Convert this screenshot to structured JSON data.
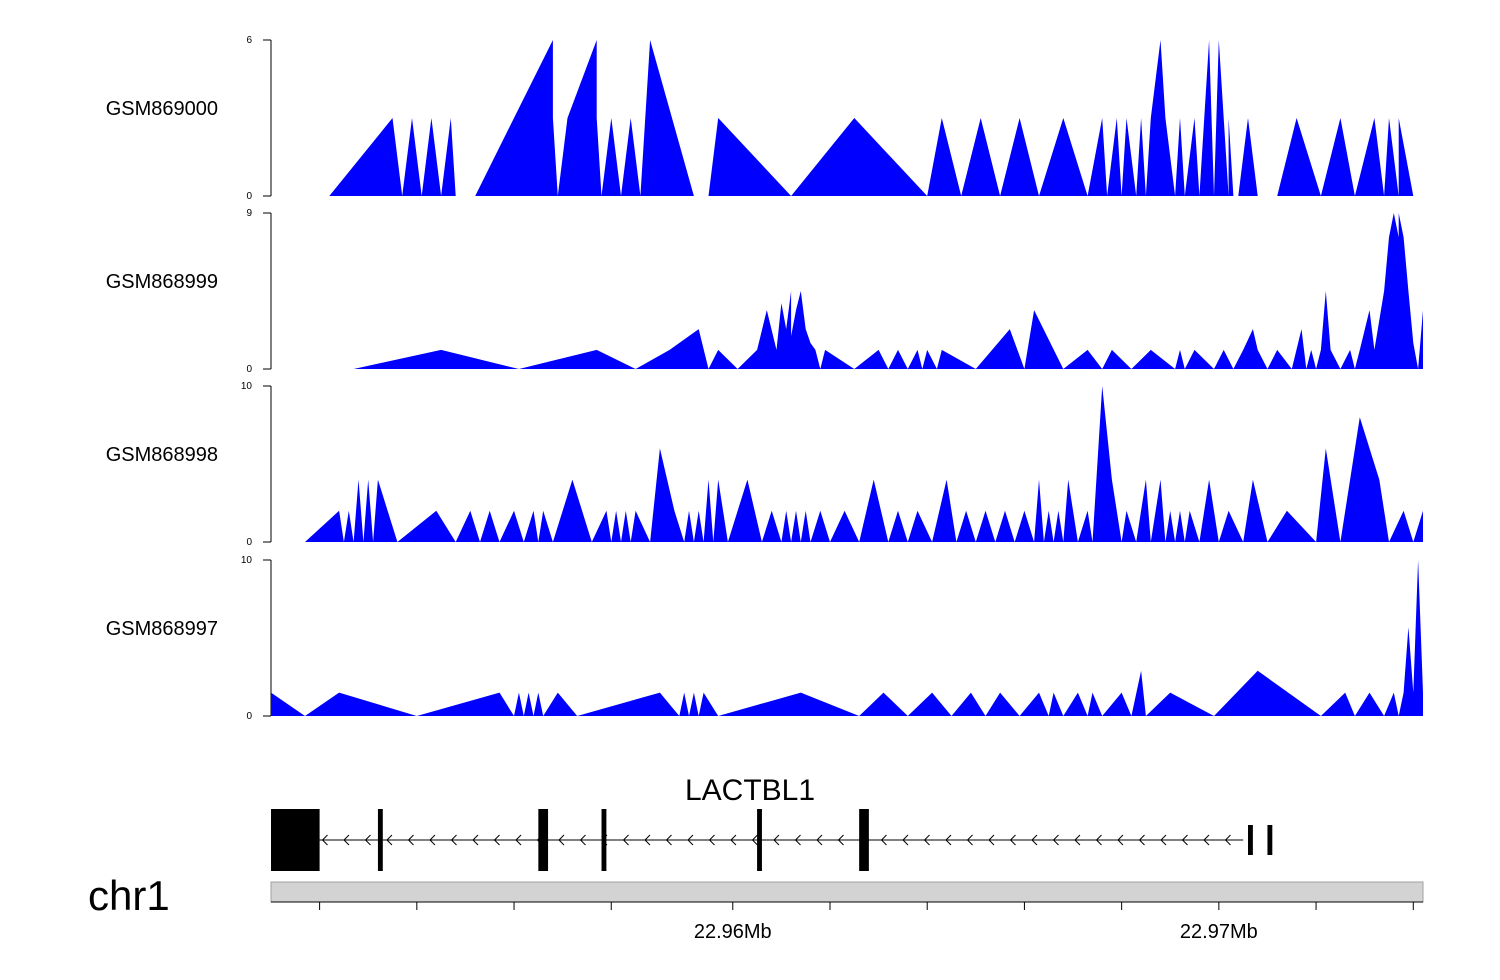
{
  "chart_data": {
    "type": "area",
    "color": "#0000ff",
    "x_range": [
      22.9505,
      22.9742
    ],
    "tracks": [
      {
        "label": "GSM869000",
        "ymin": 0,
        "ymax": 6,
        "y_ticks": [
          "6",
          "0"
        ],
        "x": [
          22.9517,
          22.953,
          22.9532,
          22.9534,
          22.9536,
          22.9538,
          22.954,
          22.9542,
          22.9543,
          22.9547,
          22.9555,
          22.9563,
          22.9563,
          22.9564,
          22.9566,
          22.9572,
          22.9572,
          22.9573,
          22.9575,
          22.9577,
          22.9579,
          22.9581,
          22.9583,
          22.9592,
          22.9595,
          22.9597,
          22.9612,
          22.9625,
          22.964,
          22.9643,
          22.9647,
          22.9651,
          22.9655,
          22.9659,
          22.9663,
          22.9668,
          22.9673,
          22.9676,
          22.9677,
          22.9679,
          22.968,
          22.9681,
          22.9683,
          22.9684,
          22.9685,
          22.9686,
          22.9688,
          22.9689,
          22.9691,
          22.9692,
          22.9693,
          22.9695,
          22.9696,
          22.9698,
          22.9699,
          22.97,
          22.9702,
          22.9702,
          22.9703,
          22.9704,
          22.9706,
          22.9708,
          22.9712,
          22.9716,
          22.9721,
          22.9725,
          22.9728,
          22.9732,
          22.9734,
          22.9735,
          22.9737,
          22.9737,
          22.974
        ],
        "y": [
          0,
          3,
          0,
          3,
          0,
          3,
          0,
          3,
          0,
          0,
          3,
          6,
          3,
          0,
          3,
          6,
          3,
          0,
          3,
          0,
          3,
          0,
          6,
          0,
          0,
          3,
          0,
          3,
          0,
          3,
          0,
          3,
          0,
          3,
          0,
          3,
          0,
          3,
          0,
          3,
          0,
          3,
          0,
          3,
          0,
          3,
          6,
          3,
          0,
          3,
          0,
          3,
          0,
          6,
          0,
          6,
          0,
          3,
          0,
          0,
          3,
          0,
          0,
          3,
          0,
          3,
          0,
          3,
          0,
          3,
          0,
          3,
          0
        ]
      },
      {
        "label": "GSM868999",
        "ymin": 0,
        "ymax": 9,
        "y_ticks": [
          "9",
          "0"
        ],
        "x": [
          22.9522,
          22.954,
          22.9556,
          22.9572,
          22.958,
          22.9587,
          22.9593,
          22.9595,
          22.9597,
          22.9601,
          22.9605,
          22.9607,
          22.9609,
          22.961,
          22.9611,
          22.9612,
          22.9612,
          22.9613,
          22.9614,
          22.9615,
          22.9616,
          22.9617,
          22.9618,
          22.9619,
          22.9625,
          22.963,
          22.9632,
          22.9634,
          22.9636,
          22.9638,
          22.9639,
          22.964,
          22.9642,
          22.9643,
          22.965,
          22.9657,
          22.966,
          22.9662,
          22.9668,
          22.9673,
          22.9676,
          22.9678,
          22.9682,
          22.9686,
          22.9691,
          22.9692,
          22.9693,
          22.9695,
          22.9699,
          22.9701,
          22.9703,
          22.9705,
          22.9707,
          22.9708,
          22.971,
          22.9712,
          22.9715,
          22.9717,
          22.9718,
          22.9719,
          22.972,
          22.9721,
          22.9722,
          22.9723,
          22.9725,
          22.9727,
          22.9728,
          22.9729,
          22.9731,
          22.9732,
          22.9734,
          22.9735,
          22.9736,
          22.9737,
          22.9737,
          22.9738,
          22.9739,
          22.974,
          22.9741,
          22.9742
        ],
        "y": [
          0,
          1.1,
          0,
          1.1,
          0,
          1.1,
          2.3,
          0,
          1.1,
          0,
          1.1,
          3.4,
          1.1,
          3.8,
          2.3,
          4.5,
          1.9,
          3.4,
          4.5,
          2.3,
          1.5,
          1.1,
          0,
          1.1,
          0,
          1.1,
          0,
          1.1,
          0,
          1.1,
          0,
          1.1,
          0,
          1.1,
          0,
          2.3,
          0,
          3.4,
          0,
          1.1,
          0,
          1.1,
          0,
          1.1,
          0,
          1.1,
          0,
          1.1,
          0,
          1.1,
          0,
          1.1,
          2.3,
          1.1,
          0,
          1.1,
          0,
          2.3,
          0,
          1.1,
          0,
          1.1,
          4.5,
          1.1,
          0,
          1.1,
          0,
          1.1,
          3.4,
          1.1,
          4.5,
          7.6,
          9,
          7.6,
          9,
          7.6,
          4.5,
          1.5,
          0,
          3.4
        ]
      },
      {
        "label": "GSM868998",
        "ymin": 0,
        "ymax": 10,
        "y_ticks": [
          "10",
          "0"
        ],
        "x": [
          22.9512,
          22.9519,
          22.952,
          22.9521,
          22.9522,
          22.9523,
          22.9524,
          22.9525,
          22.9526,
          22.9527,
          22.9531,
          22.9539,
          22.9543,
          22.9546,
          22.9548,
          22.955,
          22.9552,
          22.9555,
          22.9557,
          22.9559,
          22.956,
          22.9561,
          22.9563,
          22.9567,
          22.9571,
          22.9574,
          22.9575,
          22.9576,
          22.9577,
          22.9578,
          22.9579,
          22.958,
          22.9583,
          22.9585,
          22.9588,
          22.959,
          22.9591,
          22.9592,
          22.9593,
          22.9594,
          22.9595,
          22.9596,
          22.9597,
          22.9599,
          22.9603,
          22.9606,
          22.9608,
          22.961,
          22.9611,
          22.9612,
          22.9613,
          22.9614,
          22.9615,
          22.9616,
          22.9618,
          22.962,
          22.9623,
          22.9626,
          22.9629,
          22.9632,
          22.9634,
          22.9636,
          22.9638,
          22.9641,
          22.9644,
          22.9646,
          22.9648,
          22.965,
          22.9652,
          22.9654,
          22.9656,
          22.9658,
          22.966,
          22.9662,
          22.9663,
          22.9664,
          22.9665,
          22.9666,
          22.9667,
          22.9668,
          22.9669,
          22.9671,
          22.9673,
          22.9674,
          22.9676,
          22.9678,
          22.968,
          22.9681,
          22.9683,
          22.9685,
          22.9686,
          22.9688,
          22.9689,
          22.969,
          22.9691,
          22.9692,
          22.9693,
          22.9694,
          22.9696,
          22.9698,
          22.97,
          22.9702,
          22.9705,
          22.9707,
          22.971,
          22.9714,
          22.972,
          22.9722,
          22.9725,
          22.9729,
          22.9733,
          22.9735,
          22.9738,
          22.974,
          22.9742
        ],
        "y": [
          0,
          2,
          0,
          2,
          0,
          4,
          0,
          4,
          0,
          4,
          0,
          2,
          0,
          2,
          0,
          2,
          0,
          2,
          0,
          2,
          0,
          2,
          0,
          4,
          0,
          2,
          0,
          2,
          0,
          2,
          0,
          2,
          0,
          6,
          2,
          0,
          2,
          0,
          2,
          0,
          4,
          0,
          4,
          0,
          4,
          0,
          2,
          0,
          2,
          0,
          2,
          0,
          2,
          0,
          2,
          0,
          2,
          0,
          4,
          0,
          2,
          0,
          2,
          0,
          4,
          0,
          2,
          0,
          2,
          0,
          2,
          0,
          2,
          0,
          4,
          0,
          2,
          0,
          2,
          0,
          4,
          0,
          2,
          0,
          10,
          4,
          0,
          2,
          0,
          4,
          0,
          4,
          0,
          2,
          0,
          2,
          0,
          2,
          0,
          4,
          0,
          2,
          0,
          4,
          0,
          2,
          0,
          6,
          0,
          8,
          4,
          0,
          2,
          0,
          2
        ]
      },
      {
        "label": "GSM868997",
        "ymin": 0,
        "ymax": 10,
        "y_ticks": [
          "10",
          "0"
        ],
        "x": [
          22.9505,
          22.9512,
          22.9519,
          22.9535,
          22.9552,
          22.9555,
          22.9556,
          22.9557,
          22.9558,
          22.9559,
          22.956,
          22.9561,
          22.9564,
          22.9568,
          22.9585,
          22.9589,
          22.959,
          22.9591,
          22.9592,
          22.9593,
          22.9594,
          22.9597,
          22.9614,
          22.9626,
          22.9631,
          22.9636,
          22.9641,
          22.9645,
          22.9649,
          22.9652,
          22.9655,
          22.9659,
          22.9663,
          22.9665,
          22.9666,
          22.9668,
          22.9671,
          22.9673,
          22.9674,
          22.9676,
          22.968,
          22.9682,
          22.9684,
          22.9685,
          22.969,
          22.9699,
          22.9708,
          22.9721,
          22.9726,
          22.9728,
          22.9731,
          22.9734,
          22.9736,
          22.9737,
          22.9738,
          22.9739,
          22.974,
          22.9741,
          22.9742
        ],
        "y": [
          1.5,
          0,
          1.5,
          0,
          1.5,
          0,
          1.5,
          0,
          1.5,
          0,
          1.5,
          0,
          1.5,
          0,
          1.5,
          0,
          1.5,
          0,
          1.5,
          0,
          1.5,
          0,
          1.5,
          0,
          1.5,
          0,
          1.5,
          0,
          1.5,
          0,
          1.5,
          0,
          1.5,
          0,
          1.5,
          0,
          1.5,
          0,
          1.5,
          0,
          1.5,
          0,
          2.9,
          0,
          1.5,
          0,
          2.9,
          0,
          1.5,
          0,
          1.5,
          0,
          1.5,
          0,
          1.5,
          5.7,
          1.5,
          10,
          1.5
        ]
      }
    ],
    "gene": {
      "name": "LACTBL1",
      "strand": "-",
      "span": [
        22.9505,
        22.9705
      ],
      "exons": [
        [
          22.9505,
          22.9515
        ],
        [
          22.9527,
          22.9528
        ],
        [
          22.956,
          22.9562
        ],
        [
          22.9573,
          22.9574
        ],
        [
          22.9605,
          22.9606
        ],
        [
          22.9626,
          22.9628
        ],
        [
          22.9706,
          22.9707
        ],
        [
          22.971,
          22.9711
        ]
      ]
    },
    "chromosome": "chr1",
    "x_tick_labels": [
      {
        "pos": 22.96,
        "label": "22.96Mb"
      },
      {
        "pos": 22.97,
        "label": "22.97Mb"
      }
    ],
    "x_minor_ticks": [
      22.9515,
      22.9535,
      22.9555,
      22.9575,
      22.96,
      22.962,
      22.964,
      22.966,
      22.968,
      22.97,
      22.972,
      22.974
    ]
  }
}
